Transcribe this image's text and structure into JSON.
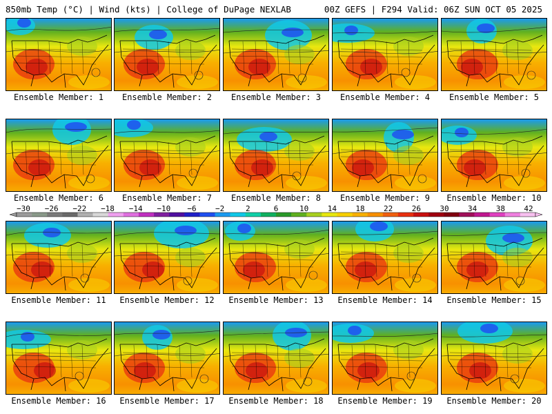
{
  "header": {
    "title_left": "850mb Temp (°C) | Wind (kts) | College of DuPage NEXLAB",
    "title_right": "00Z GEFS | F294 Valid: 06Z SUN OCT 05 2025"
  },
  "colorbar": {
    "labels": [
      "−30",
      "−26",
      "−22",
      "−18",
      "−14",
      "−10",
      "−6",
      "−2",
      "2",
      "6",
      "10",
      "14",
      "18",
      "22",
      "26",
      "30",
      "34",
      "38",
      "42"
    ],
    "colors": [
      "#9b9b9b",
      "#8a9a8a",
      "#7a7a7a",
      "#6a6a6a",
      "#b0b0b0",
      "#d8d8d8",
      "#f0a0f0",
      "#e070e0",
      "#c030c0",
      "#8020a0",
      "#5010a0",
      "#2020c8",
      "#2050f0",
      "#1a9af0",
      "#10c8e8",
      "#10d0a8",
      "#10b060",
      "#2a9a2a",
      "#60b020",
      "#a8d020",
      "#e8e810",
      "#f8d000",
      "#f8b000",
      "#f89000",
      "#f06010",
      "#e83010",
      "#c81010",
      "#a00010",
      "#800010",
      "#a0105a",
      "#c01890",
      "#e040c0",
      "#f080e0",
      "#f8c0f0"
    ]
  },
  "panels": [
    {
      "caption": "Ensemble Member: 1"
    },
    {
      "caption": "Ensemble Member: 2"
    },
    {
      "caption": "Ensemble Member: 3"
    },
    {
      "caption": "Ensemble Member: 4"
    },
    {
      "caption": "Ensemble Member: 5"
    },
    {
      "caption": "Ensemble Member: 6"
    },
    {
      "caption": "Ensemble Member: 7"
    },
    {
      "caption": "Ensemble Member: 8"
    },
    {
      "caption": "Ensemble Member: 9"
    },
    {
      "caption": "Ensemble Member: 10"
    },
    {
      "caption": "Ensemble Member: 11"
    },
    {
      "caption": "Ensemble Member: 12"
    },
    {
      "caption": "Ensemble Member: 13"
    },
    {
      "caption": "Ensemble Member: 14"
    },
    {
      "caption": "Ensemble Member: 15"
    },
    {
      "caption": "Ensemble Member: 16"
    },
    {
      "caption": "Ensemble Member: 17"
    },
    {
      "caption": "Ensemble Member: 18"
    },
    {
      "caption": "Ensemble Member: 19"
    },
    {
      "caption": "Ensemble Member: 20"
    }
  ]
}
